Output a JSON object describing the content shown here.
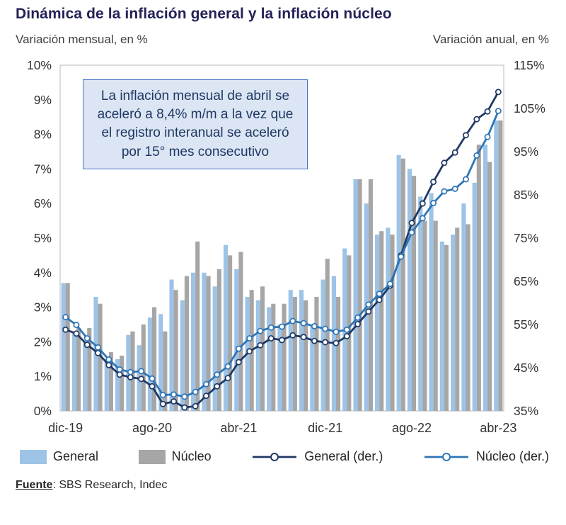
{
  "header": {
    "title": "Dinámica de la inflación general y la inflación núcleo",
    "left_axis_caption": "Variación mensual, en %",
    "right_axis_caption": "Variación anual, en %"
  },
  "annotation": {
    "text": "La inflación mensual de abril se aceleró a 8,4% m/m a la vez que el registro interanual se aceleró por 15° mes consecutivo"
  },
  "legend": [
    {
      "label": "General",
      "type": "bar",
      "color": "#9DC3E6"
    },
    {
      "label": "Núcleo",
      "type": "bar",
      "color": "#A6A6A6"
    },
    {
      "label": "General (der.)",
      "type": "line",
      "color": "#1F3864"
    },
    {
      "label": "Núcleo (der.)",
      "type": "line",
      "color": "#2E75B6"
    }
  ],
  "footer": {
    "source_label": "Fuente",
    "source_rest": ": SBS Research, Indec"
  },
  "chart_data": {
    "type": "bar",
    "subtype": "combo-bar-line-dual-axis",
    "title": "Dinámica de la inflación general y la inflación núcleo",
    "xlabel": "",
    "ylabel_left": "Variación mensual, en %",
    "ylabel_right": "Variación anual, en %",
    "grid": false,
    "legend_position": "bottom",
    "categories": [
      "dic-19",
      "ene-20",
      "feb-20",
      "mar-20",
      "abr-20",
      "may-20",
      "jun-20",
      "jul-20",
      "ago-20",
      "sep-20",
      "oct-20",
      "nov-20",
      "dic-20",
      "ene-21",
      "feb-21",
      "mar-21",
      "abr-21",
      "may-21",
      "jun-21",
      "jul-21",
      "ago-21",
      "sep-21",
      "oct-21",
      "nov-21",
      "dic-21",
      "ene-22",
      "feb-22",
      "mar-22",
      "abr-22",
      "may-22",
      "jun-22",
      "jul-22",
      "ago-22",
      "sep-22",
      "oct-22",
      "nov-22",
      "dic-22",
      "ene-23",
      "feb-23",
      "mar-23",
      "abr-23"
    ],
    "x_tick_labels": [
      "dic-19",
      "ago-20",
      "abr-21",
      "dic-21",
      "ago-22",
      "abr-23"
    ],
    "x_tick_indices": [
      0,
      8,
      16,
      24,
      32,
      40
    ],
    "left_axis": {
      "min": 0,
      "max": 10,
      "step": 1,
      "format": "percent"
    },
    "right_axis": {
      "min": 35,
      "max": 115,
      "step": 10,
      "format": "percent"
    },
    "series": [
      {
        "name": "General",
        "type": "bar",
        "axis": "left",
        "color": "#9DC3E6",
        "values": [
          3.7,
          2.3,
          2.0,
          3.3,
          1.5,
          1.5,
          2.2,
          1.9,
          2.7,
          2.8,
          3.8,
          3.2,
          4.0,
          4.0,
          3.6,
          4.8,
          4.1,
          3.3,
          3.2,
          3.0,
          2.5,
          3.5,
          3.5,
          2.5,
          3.8,
          3.9,
          4.7,
          6.7,
          6.0,
          5.1,
          5.3,
          7.4,
          7.0,
          6.2,
          6.3,
          4.9,
          5.1,
          6.0,
          6.6,
          7.7,
          8.4
        ]
      },
      {
        "name": "Núcleo",
        "type": "bar",
        "axis": "left",
        "color": "#A6A6A6",
        "values": [
          3.7,
          2.4,
          2.4,
          3.1,
          1.7,
          1.6,
          2.3,
          2.5,
          3.0,
          2.3,
          3.5,
          3.9,
          4.9,
          3.9,
          4.1,
          4.5,
          4.6,
          3.5,
          3.6,
          3.1,
          3.1,
          3.3,
          3.2,
          3.3,
          4.4,
          3.3,
          4.5,
          6.7,
          6.7,
          5.2,
          5.1,
          7.3,
          6.8,
          5.5,
          5.5,
          4.8,
          5.3,
          5.4,
          7.7,
          7.2,
          8.4
        ]
      },
      {
        "name": "General (der.)",
        "type": "line",
        "axis": "right",
        "color": "#1F3864",
        "values": [
          53.8,
          52.9,
          50.3,
          48.4,
          45.6,
          43.4,
          42.8,
          42.4,
          40.7,
          36.6,
          37.2,
          35.8,
          36.1,
          38.5,
          40.7,
          42.6,
          46.3,
          48.8,
          50.2,
          51.8,
          51.4,
          52.5,
          52.1,
          51.2,
          50.9,
          50.7,
          52.3,
          55.1,
          58.0,
          60.7,
          64.0,
          71.0,
          78.5,
          83.0,
          88.0,
          92.4,
          94.8,
          98.8,
          102.5,
          104.3,
          108.8
        ]
      },
      {
        "name": "Núcleo (der.)",
        "type": "line",
        "axis": "right",
        "color": "#2E75B6",
        "values": [
          56.7,
          54.9,
          51.8,
          49.7,
          46.9,
          44.6,
          44.0,
          44.2,
          42.5,
          38.7,
          38.8,
          38.3,
          39.4,
          41.2,
          43.4,
          45.3,
          49.4,
          51.8,
          53.5,
          54.3,
          54.5,
          55.8,
          55.3,
          54.6,
          54.0,
          53.3,
          53.8,
          56.6,
          59.6,
          62.1,
          64.4,
          70.7,
          76.3,
          79.6,
          83.1,
          85.8,
          86.4,
          88.6,
          94.1,
          98.4,
          104.4
        ]
      }
    ]
  }
}
